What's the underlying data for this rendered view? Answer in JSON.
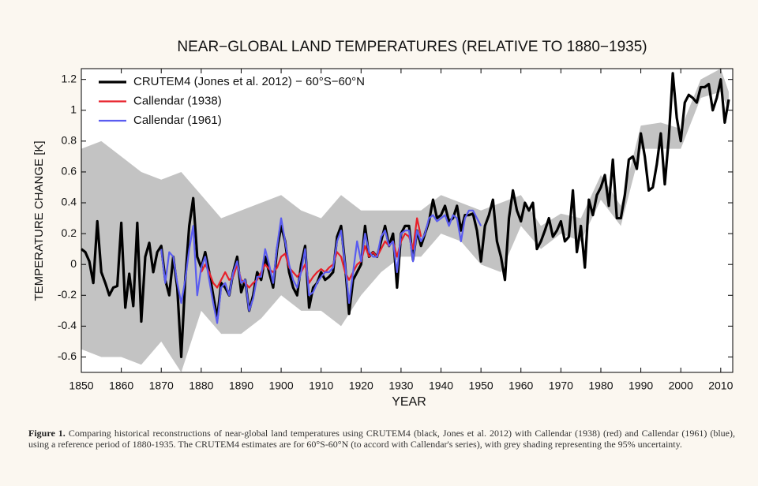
{
  "chart_data": {
    "type": "line",
    "title": "NEAR−GLOBAL LAND TEMPERATURES (RELATIVE TO 1880−1935)",
    "xlabel": "YEAR",
    "ylabel": "TEMPERATURE CHANGE  [K]",
    "xlim": [
      1850,
      2013
    ],
    "ylim": [
      -0.7,
      1.27
    ],
    "xticks": [
      1850,
      1860,
      1870,
      1880,
      1890,
      1900,
      1910,
      1920,
      1930,
      1940,
      1950,
      1960,
      1970,
      1980,
      1990,
      2000,
      2010
    ],
    "yticks": [
      -0.6,
      -0.4,
      -0.2,
      0,
      0.2,
      0.4,
      0.6,
      0.8,
      1,
      1.2
    ],
    "legend": "upper left",
    "band": {
      "color": "#c3c3c3",
      "x": [
        1850,
        1855,
        1860,
        1865,
        1870,
        1875,
        1880,
        1885,
        1890,
        1895,
        1900,
        1905,
        1910,
        1915,
        1920,
        1925,
        1930,
        1935,
        1940,
        1945,
        1950,
        1955,
        1960,
        1965,
        1970,
        1975,
        1980,
        1985,
        1990,
        1995,
        2000,
        2005,
        2010,
        2012
      ],
      "lower": [
        -0.55,
        -0.6,
        -0.6,
        -0.65,
        -0.5,
        -0.7,
        -0.3,
        -0.45,
        -0.45,
        -0.35,
        -0.2,
        -0.3,
        -0.3,
        -0.4,
        -0.2,
        -0.05,
        0.05,
        0.05,
        0.2,
        0.15,
        0.0,
        -0.05,
        0.25,
        0.1,
        0.2,
        0.15,
        0.42,
        0.25,
        0.75,
        0.75,
        0.75,
        1.08,
        1.12,
        1.0
      ],
      "upper": [
        0.75,
        0.8,
        0.7,
        0.6,
        0.55,
        0.6,
        0.45,
        0.3,
        0.35,
        0.4,
        0.45,
        0.35,
        0.3,
        0.45,
        0.35,
        0.35,
        0.35,
        0.35,
        0.45,
        0.4,
        0.35,
        0.4,
        0.45,
        0.25,
        0.33,
        0.3,
        0.58,
        0.38,
        0.9,
        0.92,
        0.88,
        1.2,
        1.27,
        1.12
      ]
    },
    "series": [
      {
        "name": "CRUTEM4 (Jones et al. 2012) − 60°S−60°N",
        "color": "#000000",
        "width": 3.2,
        "x": [
          1850,
          1851,
          1852,
          1853,
          1854,
          1855,
          1856,
          1857,
          1858,
          1859,
          1860,
          1861,
          1862,
          1863,
          1864,
          1865,
          1866,
          1867,
          1868,
          1869,
          1870,
          1871,
          1872,
          1873,
          1874,
          1875,
          1876,
          1877,
          1878,
          1879,
          1880,
          1881,
          1882,
          1883,
          1884,
          1885,
          1886,
          1887,
          1888,
          1889,
          1890,
          1891,
          1892,
          1893,
          1894,
          1895,
          1896,
          1897,
          1898,
          1899,
          1900,
          1901,
          1902,
          1903,
          1904,
          1905,
          1906,
          1907,
          1908,
          1909,
          1910,
          1911,
          1912,
          1913,
          1914,
          1915,
          1916,
          1917,
          1918,
          1919,
          1920,
          1921,
          1922,
          1923,
          1924,
          1925,
          1926,
          1927,
          1928,
          1929,
          1930,
          1931,
          1932,
          1933,
          1934,
          1935,
          1936,
          1937,
          1938,
          1939,
          1940,
          1941,
          1942,
          1943,
          1944,
          1945,
          1946,
          1947,
          1948,
          1949,
          1950,
          1951,
          1952,
          1953,
          1954,
          1955,
          1956,
          1957,
          1958,
          1959,
          1960,
          1961,
          1962,
          1963,
          1964,
          1965,
          1966,
          1967,
          1968,
          1969,
          1970,
          1971,
          1972,
          1973,
          1974,
          1975,
          1976,
          1977,
          1978,
          1979,
          1980,
          1981,
          1982,
          1983,
          1984,
          1985,
          1986,
          1987,
          1988,
          1989,
          1990,
          1991,
          1992,
          1993,
          1994,
          1995,
          1996,
          1997,
          1998,
          1999,
          2000,
          2001,
          2002,
          2003,
          2004,
          2005,
          2006,
          2007,
          2008,
          2009,
          2010,
          2011,
          2012
        ],
        "values": [
          0.1,
          0.08,
          0.02,
          -0.12,
          0.28,
          -0.05,
          -0.12,
          -0.2,
          -0.15,
          -0.14,
          0.27,
          -0.28,
          -0.06,
          -0.27,
          0.27,
          -0.37,
          0.05,
          0.14,
          -0.05,
          0.08,
          0.12,
          -0.1,
          -0.2,
          0.05,
          -0.15,
          -0.6,
          -0.1,
          0.25,
          0.43,
          0.05,
          -0.02,
          0.08,
          -0.05,
          -0.2,
          -0.35,
          -0.12,
          -0.15,
          -0.2,
          -0.05,
          0.05,
          -0.18,
          -0.1,
          -0.3,
          -0.2,
          -0.05,
          -0.1,
          0.05,
          -0.05,
          -0.15,
          0.1,
          0.25,
          0.15,
          -0.05,
          -0.15,
          -0.2,
          0.0,
          0.12,
          -0.28,
          -0.15,
          -0.12,
          -0.05,
          -0.1,
          -0.08,
          -0.05,
          0.18,
          0.25,
          0.0,
          -0.32,
          -0.1,
          -0.05,
          0.0,
          0.25,
          0.05,
          0.08,
          0.05,
          0.15,
          0.25,
          0.12,
          0.2,
          -0.15,
          0.2,
          0.25,
          0.25,
          0.03,
          0.22,
          0.12,
          0.2,
          0.28,
          0.42,
          0.3,
          0.32,
          0.38,
          0.28,
          0.3,
          0.38,
          0.22,
          0.32,
          0.32,
          0.33,
          0.22,
          0.02,
          0.25,
          0.32,
          0.42,
          0.15,
          0.05,
          -0.1,
          0.3,
          0.48,
          0.35,
          0.28,
          0.4,
          0.35,
          0.4,
          0.1,
          0.15,
          0.22,
          0.3,
          0.18,
          0.22,
          0.28,
          0.15,
          0.18,
          0.48,
          0.08,
          0.25,
          -0.02,
          0.42,
          0.32,
          0.45,
          0.5,
          0.58,
          0.38,
          0.68,
          0.3,
          0.3,
          0.45,
          0.68,
          0.7,
          0.62,
          0.85,
          0.7,
          0.48,
          0.5,
          0.65,
          0.85,
          0.52,
          0.82,
          1.24,
          0.95,
          0.8,
          1.05,
          1.1,
          1.08,
          1.05,
          1.15,
          1.15,
          1.17,
          1.0,
          1.08,
          1.2,
          0.92,
          1.07
        ]
      },
      {
        "name": "Callendar (1938)",
        "color": "#e8202a",
        "width": 2.2,
        "x": [
          1880,
          1881,
          1882,
          1883,
          1884,
          1885,
          1886,
          1887,
          1888,
          1889,
          1890,
          1891,
          1892,
          1893,
          1894,
          1895,
          1896,
          1897,
          1898,
          1899,
          1900,
          1901,
          1902,
          1903,
          1904,
          1905,
          1906,
          1907,
          1908,
          1909,
          1910,
          1911,
          1912,
          1913,
          1914,
          1915,
          1916,
          1917,
          1918,
          1919,
          1920,
          1921,
          1922,
          1923,
          1924,
          1925,
          1926,
          1927,
          1928,
          1929,
          1930,
          1931,
          1932,
          1933,
          1934,
          1935
        ],
        "values": [
          -0.05,
          0.0,
          -0.05,
          -0.12,
          -0.15,
          -0.1,
          -0.05,
          -0.1,
          -0.08,
          0.0,
          -0.1,
          -0.12,
          -0.15,
          -0.12,
          -0.1,
          -0.05,
          0.0,
          -0.03,
          -0.05,
          -0.02,
          0.05,
          0.07,
          -0.02,
          -0.05,
          -0.08,
          -0.05,
          0.0,
          -0.12,
          -0.08,
          -0.05,
          -0.03,
          -0.05,
          -0.02,
          0.0,
          0.08,
          0.05,
          -0.05,
          -0.1,
          -0.05,
          0.0,
          0.02,
          0.12,
          0.05,
          0.08,
          0.05,
          0.1,
          0.15,
          0.12,
          0.15,
          0.05,
          0.15,
          0.2,
          0.18,
          0.1,
          0.3,
          0.18
        ]
      },
      {
        "name": "Callendar (1961)",
        "color": "#5a5cf0",
        "width": 2.2,
        "x": [
          1870,
          1871,
          1872,
          1873,
          1874,
          1875,
          1876,
          1877,
          1878,
          1879,
          1880,
          1881,
          1882,
          1883,
          1884,
          1885,
          1886,
          1887,
          1888,
          1889,
          1890,
          1891,
          1892,
          1893,
          1894,
          1895,
          1896,
          1897,
          1898,
          1899,
          1900,
          1901,
          1902,
          1903,
          1904,
          1905,
          1906,
          1907,
          1908,
          1909,
          1910,
          1911,
          1912,
          1913,
          1914,
          1915,
          1916,
          1917,
          1918,
          1919,
          1920,
          1921,
          1922,
          1923,
          1924,
          1925,
          1926,
          1927,
          1928,
          1929,
          1930,
          1931,
          1932,
          1933,
          1934,
          1935,
          1936,
          1937,
          1938,
          1939,
          1940,
          1941,
          1942,
          1943,
          1944,
          1945,
          1946,
          1947,
          1948,
          1949,
          1950
        ],
        "values": [
          0.1,
          -0.12,
          0.08,
          0.05,
          -0.12,
          -0.25,
          -0.1,
          0.1,
          0.25,
          -0.2,
          -0.02,
          0.05,
          -0.1,
          -0.25,
          -0.38,
          -0.15,
          -0.12,
          -0.2,
          -0.05,
          0.02,
          -0.12,
          -0.1,
          -0.3,
          -0.22,
          -0.08,
          -0.08,
          0.1,
          0.0,
          -0.12,
          0.12,
          0.3,
          0.15,
          0.0,
          -0.1,
          -0.15,
          -0.05,
          0.1,
          -0.2,
          -0.18,
          -0.12,
          -0.08,
          -0.05,
          -0.05,
          -0.02,
          0.15,
          0.22,
          0.0,
          -0.25,
          -0.05,
          0.15,
          0.02,
          0.2,
          0.08,
          0.05,
          0.05,
          0.18,
          0.22,
          0.12,
          0.15,
          -0.05,
          0.2,
          0.22,
          0.22,
          0.02,
          0.22,
          0.15,
          0.2,
          0.3,
          0.32,
          0.28,
          0.3,
          0.32,
          0.25,
          0.32,
          0.3,
          0.15,
          0.3,
          0.35,
          0.35,
          0.3,
          0.25
        ]
      }
    ]
  },
  "caption": {
    "label": "Figure 1.",
    "text": "Comparing historical reconstructions of near-global land temperatures using CRUTEM4 (black, Jones et al. 2012) with Callendar (1938) (red) and Callendar (1961) (blue), using a reference period of 1880-1935. The CRUTEM4 estimates are for 60°S-60°N (to accord with Callendar's series), with grey shading representing the 95% uncertainty."
  }
}
